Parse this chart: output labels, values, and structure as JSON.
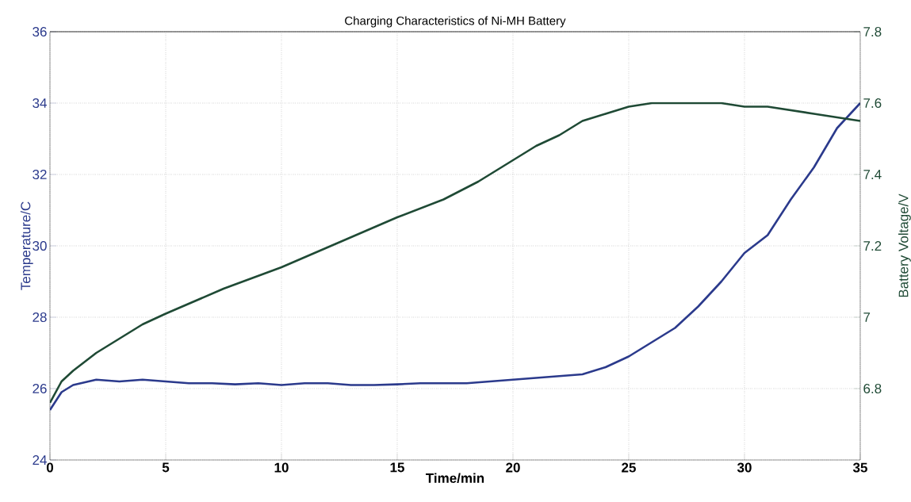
{
  "chart_data": {
    "type": "line",
    "title": "Charging Characteristics of Ni-MH Battery",
    "xlabel": "Time/min",
    "ylabel": "Temperature/C",
    "y2label": "Battery Voltage/V",
    "series": [
      {
        "name": null,
        "color": "#2b3a8c",
        "x": [
          0,
          0.5,
          1,
          2,
          3,
          4,
          5,
          6,
          7,
          8,
          9,
          10,
          11,
          12,
          13,
          14,
          15,
          16,
          17,
          18,
          19,
          20,
          21,
          22,
          23,
          24,
          25,
          26,
          27,
          28,
          29,
          30,
          31,
          32,
          33,
          34,
          35
        ],
        "values": [
          25.4,
          25.9,
          26.1,
          26.25,
          26.2,
          26.25,
          26.2,
          26.15,
          26.15,
          26.12,
          26.15,
          26.1,
          26.15,
          26.15,
          26.1,
          26.1,
          26.12,
          26.15,
          26.15,
          26.15,
          26.2,
          26.25,
          26.3,
          26.35,
          26.4,
          26.6,
          26.9,
          27.3,
          27.7,
          28.3,
          29.0,
          29.8,
          30.3,
          31.3,
          32.2,
          33.3,
          34.0
        ]
      },
      {
        "name": null,
        "color": "#1f4a35",
        "axis": "y2",
        "x": [
          0,
          0.5,
          1,
          2,
          3,
          4,
          5,
          7.5,
          10,
          12.5,
          15,
          17,
          18.5,
          20,
          21,
          22,
          23,
          24,
          25,
          26,
          27,
          28,
          29,
          30,
          31,
          32,
          33,
          34,
          35
        ],
        "values": [
          6.76,
          6.82,
          6.85,
          6.9,
          6.94,
          6.98,
          7.01,
          7.08,
          7.14,
          7.21,
          7.28,
          7.33,
          7.38,
          7.44,
          7.48,
          7.51,
          7.55,
          7.57,
          7.59,
          7.6,
          7.6,
          7.6,
          7.6,
          7.59,
          7.59,
          7.58,
          7.57,
          7.56,
          7.55
        ]
      }
    ],
    "xlim": [
      0,
      35
    ],
    "ylim": [
      24,
      36
    ],
    "y2lim": [
      6.6,
      7.8
    ],
    "xticks": [
      0,
      5,
      10,
      15,
      20,
      25,
      30,
      35
    ],
    "yticks": [
      24,
      26,
      28,
      30,
      32,
      34,
      36
    ],
    "y2ticks": [
      6.8,
      7,
      7.2,
      7.4,
      7.6,
      7.8
    ],
    "grid": true
  }
}
